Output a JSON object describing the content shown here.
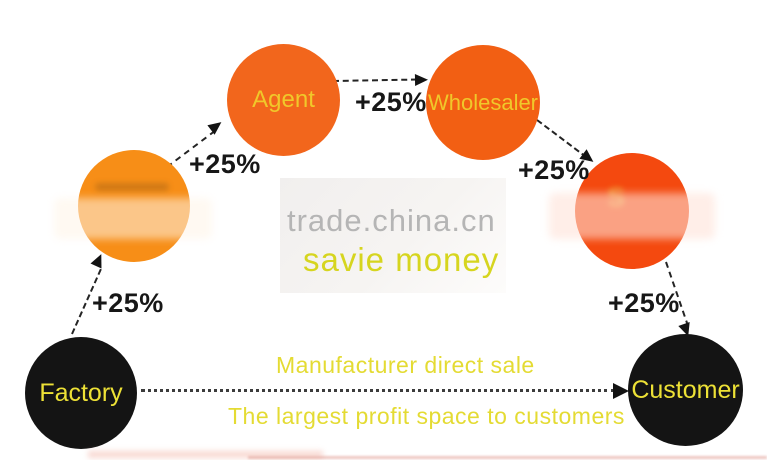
{
  "watermark": {
    "line1": "trade.china.cn",
    "line2": "savie money"
  },
  "nodes": [
    {
      "id": "factory",
      "label": "Factory"
    },
    {
      "id": "reseller-1",
      "label": ""
    },
    {
      "id": "agent",
      "label": "Agent"
    },
    {
      "id": "wholesaler",
      "label": "Wholesaler"
    },
    {
      "id": "reseller-2",
      "label": "S"
    },
    {
      "id": "customer",
      "label": "Customer"
    }
  ],
  "edges": [
    {
      "from": "factory",
      "to": "reseller-1",
      "label": "+25%"
    },
    {
      "from": "reseller-1",
      "to": "agent",
      "label": "+25%"
    },
    {
      "from": "agent",
      "to": "wholesaler",
      "label": "+25%"
    },
    {
      "from": "wholesaler",
      "to": "reseller-2",
      "label": "+25%"
    },
    {
      "from": "reseller-2",
      "to": "customer",
      "label": "+25%"
    },
    {
      "from": "factory",
      "to": "customer",
      "label": ""
    }
  ],
  "direct_channel": {
    "line1": "Manufacturer direct sale",
    "line2": "The largest profit space to customers"
  },
  "colors": {
    "orange_light": "#F78E17",
    "orange": "#F2661C",
    "orange_deep": "#F25F13",
    "orange_red": "#F4490F",
    "node_black": "#141414",
    "label_yellow": "#F0C82A",
    "black_node_label_yellow": "#EDE136",
    "bottom_text_yellow": "#E4DB33",
    "watermark_gray": "#B5B5B5",
    "watermark_yellow": "#D6D51F",
    "arrow_black": "#242424"
  }
}
